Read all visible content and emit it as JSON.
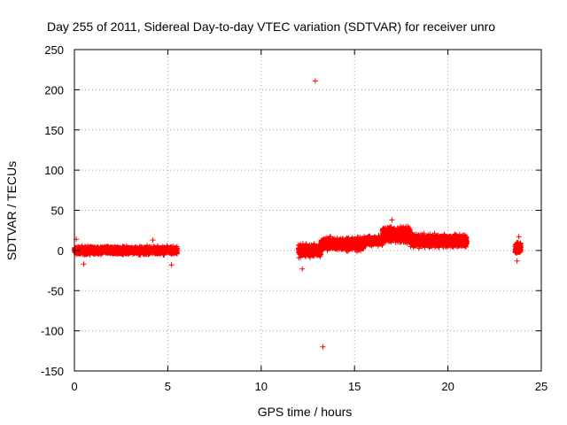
{
  "chart_data": {
    "type": "scatter",
    "title": "Day 255 of 2011, Sidereal Day-to-day VTEC variation (SDTVAR) for receiver unro",
    "xlabel": "GPS time / hours",
    "ylabel": "SDTVAR / TECUs",
    "xlim": [
      0,
      25
    ],
    "ylim": [
      -150,
      250
    ],
    "xticks": [
      "0",
      "5",
      "10",
      "15",
      "20",
      "25"
    ],
    "yticks": [
      "250",
      "200",
      "150",
      "100",
      "50",
      "0",
      "-50",
      "-100",
      "-150"
    ],
    "grid": true,
    "marker": "+",
    "color": "#ff0000",
    "segments": [
      {
        "x_start": 0.0,
        "x_end": 5.5,
        "y_base": 0,
        "y_spread": 5
      },
      {
        "x_start": 12.0,
        "x_end": 13.2,
        "y_base": 0,
        "y_spread": 8
      },
      {
        "x_start": 13.2,
        "x_end": 15.5,
        "y_base": 8,
        "y_spread": 8
      },
      {
        "x_start": 15.5,
        "x_end": 16.5,
        "y_base": 12,
        "y_spread": 6
      },
      {
        "x_start": 16.5,
        "x_end": 18.0,
        "y_base": 20,
        "y_spread": 10
      },
      {
        "x_start": 18.0,
        "x_end": 21.0,
        "y_base": 12,
        "y_spread": 8
      },
      {
        "x_start": 23.6,
        "x_end": 23.9,
        "y_base": 3,
        "y_spread": 8
      }
    ],
    "points": [
      {
        "x": 12.9,
        "y": 211
      },
      {
        "x": 13.3,
        "y": -120
      },
      {
        "x": 0.1,
        "y": 14
      },
      {
        "x": 0.5,
        "y": -17
      },
      {
        "x": 4.2,
        "y": 13
      },
      {
        "x": 5.2,
        "y": -18
      },
      {
        "x": 12.2,
        "y": -23
      },
      {
        "x": 17.0,
        "y": 38
      },
      {
        "x": 23.7,
        "y": -13
      },
      {
        "x": 23.8,
        "y": 17
      }
    ]
  }
}
